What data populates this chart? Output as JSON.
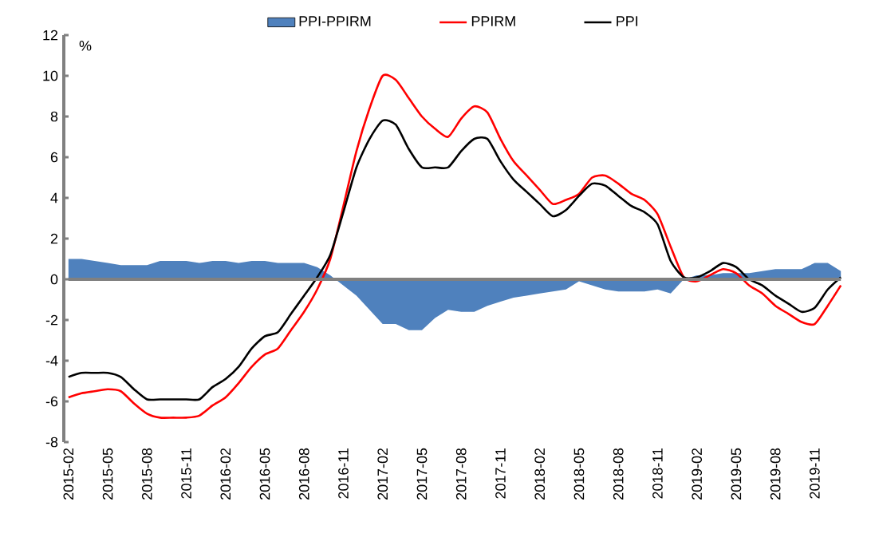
{
  "chart_data": {
    "type": "line",
    "ylabel": "%",
    "categories": [
      "2015-02",
      null,
      null,
      "2015-05",
      null,
      null,
      "2015-08",
      null,
      null,
      "2015-11",
      null,
      null,
      "2016-02",
      null,
      null,
      "2016-05",
      null,
      null,
      "2016-08",
      null,
      null,
      "2016-11",
      null,
      null,
      "2017-02",
      null,
      null,
      "2017-05",
      null,
      null,
      "2017-08",
      null,
      null,
      "2017-11",
      null,
      null,
      "2018-02",
      null,
      null,
      "2018-05",
      null,
      null,
      "2018-08",
      null,
      null,
      "2018-11",
      null,
      null,
      "2019-02",
      null,
      null,
      "2019-05",
      null,
      null,
      "2019-08",
      null,
      null,
      "2019-11",
      null,
      null
    ],
    "ylim": [
      -8,
      12
    ],
    "yticks": [
      -8,
      -6,
      -4,
      -2,
      0,
      2,
      4,
      6,
      8,
      10,
      12
    ],
    "legend": "top",
    "series": [
      {
        "name": "PPI-PPIRM",
        "type": "area",
        "color": "#4f81bd",
        "values": [
          1.0,
          1.0,
          0.9,
          0.8,
          0.7,
          0.7,
          0.7,
          0.9,
          0.9,
          0.9,
          0.8,
          0.9,
          0.9,
          0.8,
          0.9,
          0.9,
          0.8,
          0.8,
          0.8,
          0.6,
          0.2,
          -0.3,
          -0.8,
          -1.5,
          -2.2,
          -2.2,
          -2.5,
          -2.5,
          -1.9,
          -1.5,
          -1.6,
          -1.6,
          -1.3,
          -1.1,
          -0.9,
          -0.8,
          -0.7,
          -0.6,
          -0.5,
          -0.1,
          -0.3,
          -0.5,
          -0.6,
          -0.6,
          -0.6,
          -0.5,
          -0.7,
          0.0,
          0.2,
          0.2,
          0.3,
          0.3,
          0.3,
          0.4,
          0.5,
          0.5,
          0.5,
          0.8,
          0.8,
          0.4
        ]
      },
      {
        "name": "PPIRM",
        "color": "#ff0000",
        "values": [
          -5.8,
          -5.6,
          -5.5,
          -5.4,
          -5.5,
          -6.1,
          -6.6,
          -6.8,
          -6.8,
          -6.8,
          -6.7,
          -6.2,
          -5.8,
          -5.1,
          -4.3,
          -3.7,
          -3.4,
          -2.5,
          -1.6,
          -0.5,
          1.0,
          3.6,
          6.3,
          8.4,
          10.0,
          9.8,
          8.9,
          8.0,
          7.4,
          7.0,
          7.9,
          8.5,
          8.2,
          6.9,
          5.8,
          5.1,
          4.4,
          3.7,
          3.9,
          4.2,
          5.0,
          5.1,
          4.7,
          4.2,
          3.9,
          3.2,
          1.6,
          0.1,
          -0.1,
          0.2,
          0.5,
          0.3,
          -0.3,
          -0.7,
          -1.3,
          -1.7,
          -2.1,
          -2.2,
          -1.3,
          -0.3
        ]
      },
      {
        "name": "PPI",
        "color": "#000000",
        "values": [
          -4.8,
          -4.6,
          -4.6,
          -4.6,
          -4.8,
          -5.4,
          -5.9,
          -5.9,
          -5.9,
          -5.9,
          -5.9,
          -5.3,
          -4.9,
          -4.3,
          -3.4,
          -2.8,
          -2.6,
          -1.7,
          -0.8,
          0.1,
          1.2,
          3.3,
          5.5,
          6.9,
          7.8,
          7.6,
          6.4,
          5.5,
          5.5,
          5.5,
          6.3,
          6.9,
          6.9,
          5.8,
          4.9,
          4.3,
          3.7,
          3.1,
          3.4,
          4.1,
          4.7,
          4.6,
          4.1,
          3.6,
          3.3,
          2.7,
          0.9,
          0.1,
          0.1,
          0.4,
          0.8,
          0.6,
          0.0,
          -0.3,
          -0.8,
          -1.2,
          -1.6,
          -1.4,
          -0.5,
          0.1
        ]
      }
    ]
  }
}
